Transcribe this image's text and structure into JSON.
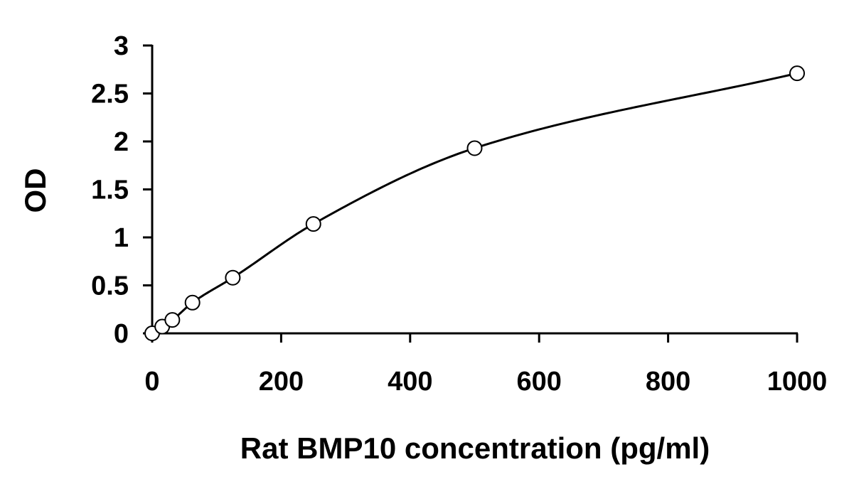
{
  "chart_data": {
    "type": "scatter",
    "title": "",
    "xlabel": "Rat BMP10 concentration (pg/ml)",
    "ylabel": "OD",
    "xlim": [
      0,
      1000
    ],
    "ylim": [
      0,
      3
    ],
    "xticks": [
      0,
      200,
      400,
      600,
      800,
      1000
    ],
    "yticks": [
      0,
      0.5,
      1,
      1.5,
      2,
      2.5,
      3
    ],
    "ytick_labels": [
      "0",
      "0.5",
      "1",
      "1.5",
      "2",
      "2.5",
      "3"
    ],
    "xtick_labels": [
      "0",
      "200",
      "400",
      "600",
      "800",
      "1000"
    ],
    "grid": false,
    "legend": "none",
    "marker": "open-circle",
    "fit_line": "smooth-curve",
    "series": [
      {
        "x": [
          0,
          15.6,
          31.25,
          62.5,
          125,
          250,
          500,
          1000
        ],
        "y": [
          0.0,
          0.07,
          0.14,
          0.32,
          0.58,
          1.14,
          1.93,
          2.71
        ]
      }
    ]
  }
}
